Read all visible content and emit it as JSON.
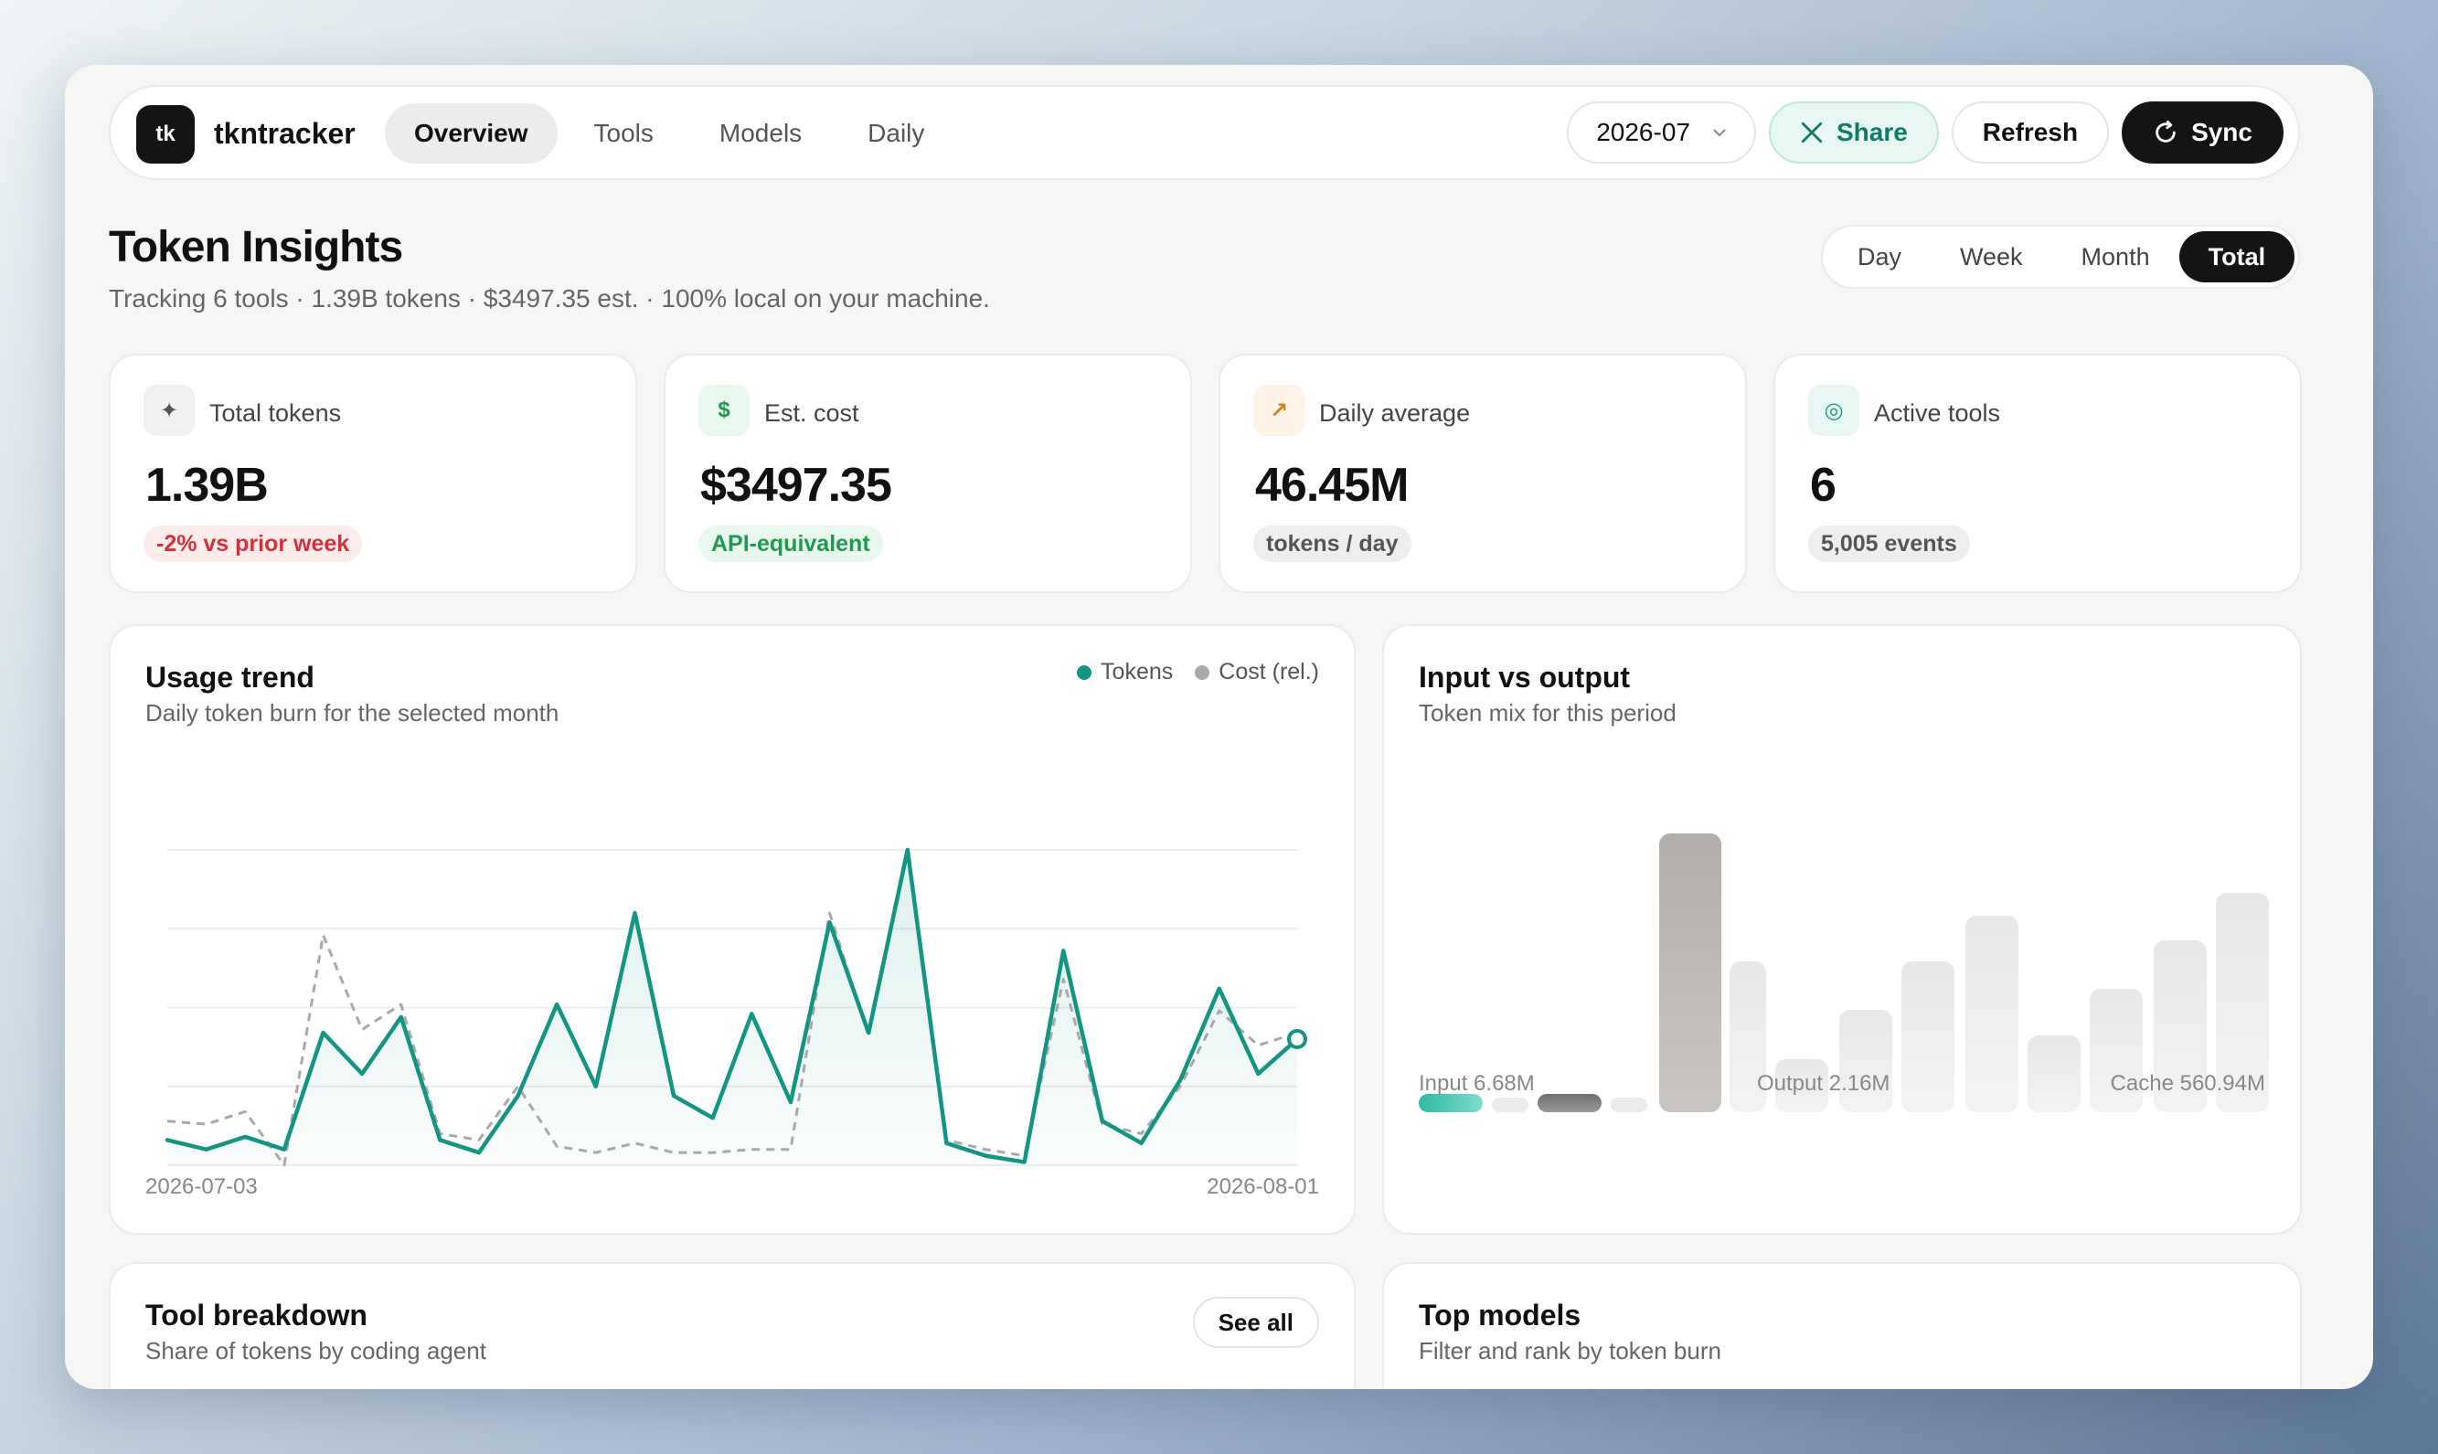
{
  "colors": {
    "accent": "#139583",
    "cost_line": "#a9a9a9",
    "dark": "#141414",
    "negative": "#d6313a",
    "positive": "#1f9a4e"
  },
  "topbar": {
    "logo_text": "tk",
    "brand": "tkntracker",
    "nav": [
      "Overview",
      "Tools",
      "Models",
      "Daily"
    ],
    "active_nav": "Overview",
    "month_select": {
      "value": "2026-07",
      "icon": "chevron-down-icon"
    },
    "share_label": "Share",
    "refresh_label": "Refresh",
    "sync_label": "Sync"
  },
  "header": {
    "title": "Token Insights",
    "subtitle": "Tracking 6 tools · 1.39B tokens · $3497.35 est. · 100% local on your machine.",
    "ranges": [
      "Day",
      "Week",
      "Month",
      "Total"
    ],
    "active_range": "Total"
  },
  "stats": [
    {
      "icon": "sparkle-icon",
      "glyph": "✦",
      "label": "Total tokens",
      "value": "1.39B",
      "badge": "-2% vs prior week",
      "tone": "negative"
    },
    {
      "icon": "dollar-icon",
      "glyph": "$",
      "label": "Est. cost",
      "value": "$3497.35",
      "badge": "API-equivalent",
      "tone": "positive"
    },
    {
      "icon": "arrow-up-right-icon",
      "glyph": "↗",
      "label": "Daily average",
      "value": "46.45M",
      "badge": "tokens / day",
      "tone": "neutral"
    },
    {
      "icon": "target-icon",
      "glyph": "◎",
      "label": "Active tools",
      "value": "6",
      "badge": "5,005 events",
      "tone": "neutral"
    }
  ],
  "usage_trend": {
    "title": "Usage trend",
    "subtitle": "Daily token burn for the selected month",
    "legend": [
      "Tokens",
      "Cost (rel.)"
    ],
    "x_start": "2026-07-03",
    "x_end": "2026-08-01"
  },
  "input_output": {
    "title": "Input vs output",
    "subtitle": "Token mix for this period",
    "labels": [
      "Input 6.68M",
      "Output 2.16M",
      "Cache 560.94M"
    ]
  },
  "tool_breakdown": {
    "title": "Tool breakdown",
    "subtitle": "Share of tokens by coding agent",
    "see_all": "See all"
  },
  "top_models": {
    "title": "Top models",
    "subtitle": "Filter and rank by token burn"
  },
  "chart_data": [
    {
      "type": "line",
      "title": "Usage trend",
      "x_range": [
        "2026-07-03",
        "2026-08-01"
      ],
      "ylim": [
        0,
        100
      ],
      "grid": true,
      "legend_position": "top-right",
      "series": [
        {
          "name": "Tokens",
          "values": [
            8,
            5,
            9,
            5,
            42,
            29,
            47,
            8,
            4,
            22,
            51,
            25,
            80,
            22,
            15,
            48,
            20,
            77,
            42,
            100,
            7,
            3,
            1,
            68,
            14,
            7,
            27,
            56,
            29,
            40
          ]
        },
        {
          "name": "Cost (rel.)",
          "values": [
            14,
            13,
            17,
            0,
            73,
            43,
            51,
            10,
            8,
            25,
            6,
            4,
            7,
            4,
            4,
            5,
            5,
            80,
            41,
            99,
            8,
            5,
            3,
            59,
            13,
            10,
            25,
            49,
            38,
            42
          ]
        }
      ]
    },
    {
      "type": "bar",
      "title": "Input vs output",
      "categories": [
        "Input",
        "Output",
        "Cache"
      ],
      "values": [
        6.68,
        2.16,
        560.94
      ],
      "unit": "M tokens"
    }
  ]
}
